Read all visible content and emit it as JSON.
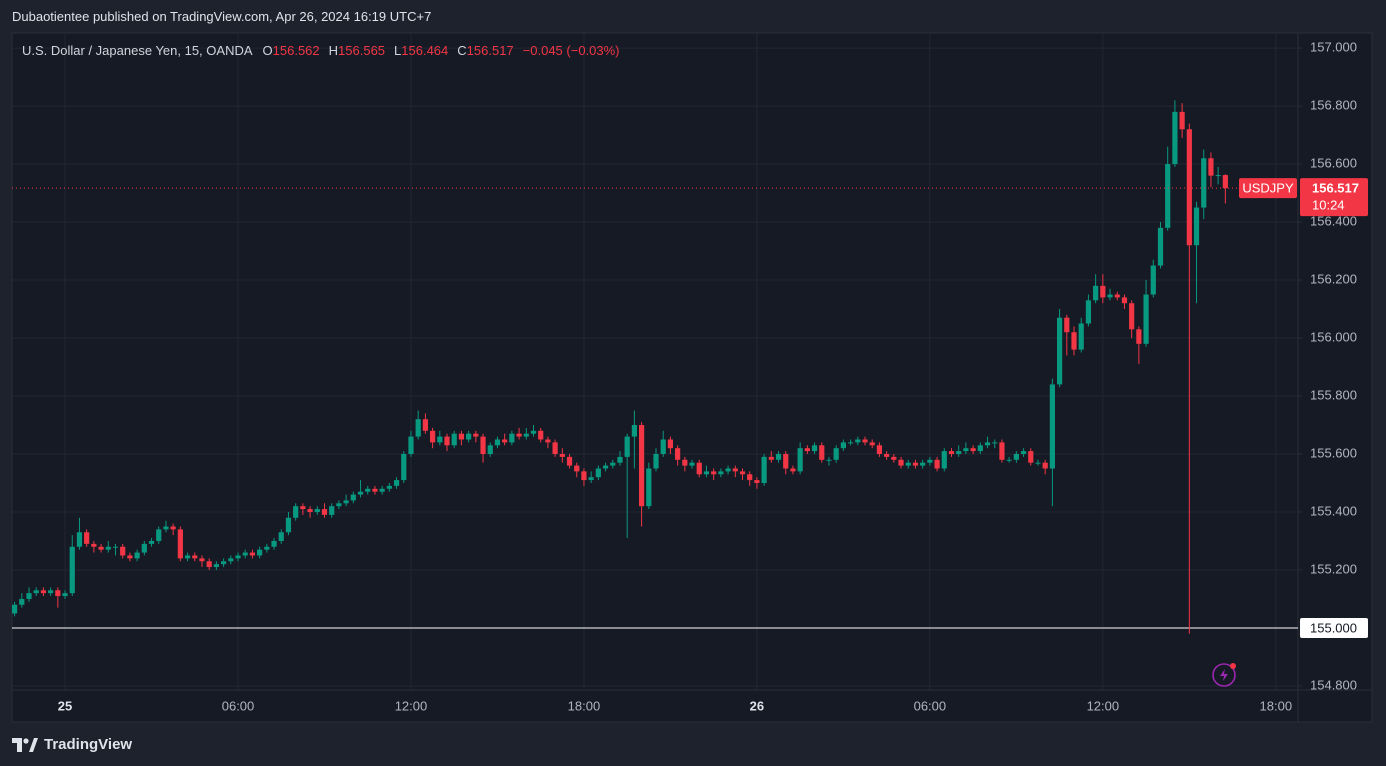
{
  "published": "Dubaotientee published on TradingView.com, Apr 26, 2024 16:19 UTC+7",
  "brand": "TradingView",
  "chart_data": {
    "type": "candlestick",
    "symbol_description": "U.S. Dollar / Japanese Yen, 15, OANDA",
    "ohlc_labels": [
      "O",
      "H",
      "L",
      "C"
    ],
    "change": "−0.045 (−0.03%)",
    "countdown": "10:24",
    "grid": true,
    "background": "#161a25",
    "xlim": [
      -1.84,
      42.77
    ],
    "ylim": [
      154.786,
      157.052
    ],
    "xticks": [
      {
        "value": 0,
        "label": "25"
      },
      {
        "value": 6,
        "label": "06:00"
      },
      {
        "value": 12,
        "label": "12:00"
      },
      {
        "value": 18,
        "label": "18:00"
      },
      {
        "value": 24,
        "label": "26"
      },
      {
        "value": 30,
        "label": "06:00"
      },
      {
        "value": 36,
        "label": "12:00"
      },
      {
        "value": 42,
        "label": "18:00"
      }
    ],
    "yticks": [
      {
        "value": 154.8,
        "label": "154.800"
      },
      {
        "value": 155,
        "label": "155.000"
      },
      {
        "value": 155.2,
        "label": "155.200"
      },
      {
        "value": 155.4,
        "label": "155.400"
      },
      {
        "value": 155.6,
        "label": "155.600"
      },
      {
        "value": 155.8,
        "label": "155.800"
      },
      {
        "value": 156,
        "label": "156.000"
      },
      {
        "value": 156.2,
        "label": "156.200"
      },
      {
        "value": 156.4,
        "label": "156.400"
      },
      {
        "value": 156.6,
        "label": "156.600"
      },
      {
        "value": 156.8,
        "label": "156.800"
      },
      {
        "value": 157,
        "label": "157.000"
      }
    ],
    "hline": {
      "value": 155,
      "label": "155.000",
      "color": "#ffffff"
    },
    "x": [
      -1.75,
      -1.5,
      -1.25,
      -1,
      -0.75,
      -0.5,
      -0.25,
      0,
      0.25,
      0.5,
      0.75,
      1,
      1.25,
      1.5,
      1.75,
      2,
      2.25,
      2.5,
      2.75,
      3,
      3.25,
      3.5,
      3.75,
      4,
      4.25,
      4.5,
      4.75,
      5,
      5.25,
      5.5,
      5.75,
      6,
      6.25,
      6.5,
      6.75,
      7,
      7.25,
      7.5,
      7.75,
      8,
      8.25,
      8.5,
      8.75,
      9,
      9.25,
      9.5,
      9.75,
      10,
      10.25,
      10.5,
      10.75,
      11,
      11.25,
      11.5,
      11.75,
      12,
      12.25,
      12.5,
      12.75,
      13,
      13.25,
      13.5,
      13.75,
      14,
      14.25,
      14.5,
      14.75,
      15,
      15.25,
      15.5,
      15.75,
      16,
      16.25,
      16.5,
      16.75,
      17,
      17.25,
      17.5,
      17.75,
      18,
      18.25,
      18.5,
      18.75,
      19,
      19.25,
      19.5,
      19.75,
      20,
      20.25,
      20.5,
      20.75,
      21,
      21.25,
      21.5,
      21.75,
      22,
      22.25,
      22.5,
      22.75,
      23,
      23.25,
      23.5,
      23.75,
      24,
      24.25,
      24.5,
      24.75,
      25,
      25.25,
      25.5,
      25.75,
      26,
      26.25,
      26.5,
      26.75,
      27,
      27.25,
      27.5,
      27.75,
      28,
      28.25,
      28.5,
      28.75,
      29,
      29.25,
      29.5,
      29.75,
      30,
      30.25,
      30.5,
      30.75,
      31,
      31.25,
      31.5,
      31.75,
      32,
      32.25,
      32.5,
      32.75,
      33,
      33.25,
      33.5,
      33.75,
      34,
      34.25,
      34.5,
      34.75,
      35,
      35.25,
      35.5,
      35.75,
      36,
      36.25,
      36.5,
      36.75,
      37,
      37.25,
      37.5,
      37.75,
      38,
      38.25,
      38.5,
      38.75,
      39,
      39.25,
      39.5,
      39.75,
      40,
      40.25
    ],
    "series": [
      {
        "name": "USDJPY",
        "up_color": "#089981",
        "down_color": "#f23645",
        "open": [
          155.05,
          155.08,
          155.1,
          155.12,
          155.13,
          155.12,
          155.13,
          155.11,
          155.12,
          155.28,
          155.33,
          155.29,
          155.28,
          155.27,
          155.28,
          155.28,
          155.25,
          155.24,
          155.26,
          155.29,
          155.3,
          155.34,
          155.35,
          155.34,
          155.24,
          155.25,
          155.24,
          155.23,
          155.21,
          155.22,
          155.23,
          155.24,
          155.25,
          155.26,
          155.25,
          155.27,
          155.28,
          155.3,
          155.33,
          155.38,
          155.42,
          155.41,
          155.4,
          155.41,
          155.39,
          155.42,
          155.43,
          155.44,
          155.46,
          155.47,
          155.48,
          155.47,
          155.48,
          155.49,
          155.51,
          155.6,
          155.66,
          155.72,
          155.68,
          155.64,
          155.66,
          155.63,
          155.67,
          155.65,
          155.67,
          155.66,
          155.6,
          155.63,
          155.65,
          155.64,
          155.67,
          155.66,
          155.67,
          155.68,
          155.65,
          155.64,
          155.6,
          155.59,
          155.56,
          155.54,
          155.51,
          155.52,
          155.55,
          155.56,
          155.57,
          155.59,
          155.66,
          155.7,
          155.42,
          155.55,
          155.6,
          155.65,
          155.62,
          155.58,
          155.56,
          155.57,
          155.53,
          155.54,
          155.53,
          155.54,
          155.55,
          155.54,
          155.53,
          155.51,
          155.5,
          155.59,
          155.58,
          155.6,
          155.55,
          155.54,
          155.62,
          155.61,
          155.63,
          155.58,
          155.58,
          155.62,
          155.64,
          155.64,
          155.65,
          155.64,
          155.63,
          155.6,
          155.59,
          155.58,
          155.56,
          155.57,
          155.56,
          155.57,
          155.58,
          155.55,
          155.61,
          155.6,
          155.61,
          155.62,
          155.61,
          155.63,
          155.64,
          155.64,
          155.58,
          155.58,
          155.6,
          155.61,
          155.57,
          155.57,
          155.55,
          155.84,
          156.07,
          156.02,
          155.96,
          156.05,
          156.13,
          156.18,
          156.14,
          156.15,
          156.14,
          156.12,
          156.03,
          155.98,
          156.15,
          156.25,
          156.38,
          156.6,
          156.78,
          156.72,
          156.32,
          156.45,
          156.62,
          156.56,
          156.562
        ],
        "high": [
          155.09,
          155.12,
          155.14,
          155.14,
          155.14,
          155.14,
          155.14,
          155.13,
          155.32,
          155.38,
          155.34,
          155.3,
          155.29,
          155.3,
          155.29,
          155.29,
          155.26,
          155.27,
          155.3,
          155.31,
          155.35,
          155.37,
          155.36,
          155.35,
          155.26,
          155.26,
          155.25,
          155.24,
          155.23,
          155.24,
          155.25,
          155.26,
          155.27,
          155.27,
          155.28,
          155.29,
          155.31,
          155.34,
          155.4,
          155.43,
          155.43,
          155.42,
          155.42,
          155.43,
          155.43,
          155.44,
          155.46,
          155.47,
          155.51,
          155.49,
          155.49,
          155.49,
          155.5,
          155.52,
          155.61,
          155.68,
          155.75,
          155.74,
          155.69,
          155.68,
          155.67,
          155.68,
          155.68,
          155.68,
          155.68,
          155.67,
          155.64,
          155.66,
          155.67,
          155.68,
          155.69,
          155.69,
          155.7,
          155.69,
          155.66,
          155.65,
          155.62,
          155.6,
          155.57,
          155.55,
          155.54,
          155.56,
          155.57,
          155.58,
          155.61,
          155.67,
          155.75,
          155.71,
          155.57,
          155.62,
          155.68,
          155.66,
          155.63,
          155.59,
          155.58,
          155.58,
          155.56,
          155.55,
          155.55,
          155.56,
          155.56,
          155.55,
          155.54,
          155.52,
          155.6,
          155.61,
          155.61,
          155.61,
          155.56,
          155.64,
          155.63,
          155.64,
          155.64,
          155.59,
          155.63,
          155.65,
          155.65,
          155.66,
          155.66,
          155.65,
          155.64,
          155.61,
          155.6,
          155.59,
          155.58,
          155.58,
          155.58,
          155.59,
          155.59,
          155.62,
          155.62,
          155.63,
          155.64,
          155.63,
          155.64,
          155.66,
          155.65,
          155.65,
          155.59,
          155.61,
          155.62,
          155.62,
          155.58,
          155.58,
          155.86,
          156.1,
          156.08,
          156.04,
          156.07,
          156.15,
          156.22,
          156.22,
          156.17,
          156.16,
          156.15,
          156.13,
          156.04,
          156.2,
          156.27,
          156.4,
          156.66,
          156.82,
          156.81,
          156.74,
          156.47,
          156.65,
          156.64,
          156.59,
          156.565
        ],
        "low": [
          155.04,
          155.07,
          155.09,
          155.11,
          155.11,
          155.11,
          155.07,
          155.1,
          155.11,
          155.27,
          155.28,
          155.26,
          155.26,
          155.26,
          155.25,
          155.24,
          155.23,
          155.23,
          155.25,
          155.28,
          155.29,
          155.33,
          155.32,
          155.23,
          155.23,
          155.23,
          155.21,
          155.2,
          155.2,
          155.21,
          155.22,
          155.23,
          155.24,
          155.24,
          155.24,
          155.26,
          155.27,
          155.29,
          155.32,
          155.37,
          155.39,
          155.38,
          155.39,
          155.38,
          155.38,
          155.41,
          155.42,
          155.43,
          155.45,
          155.46,
          155.46,
          155.46,
          155.47,
          155.48,
          155.5,
          155.59,
          155.65,
          155.67,
          155.62,
          155.63,
          155.61,
          155.62,
          155.63,
          155.64,
          155.64,
          155.57,
          155.59,
          155.62,
          155.63,
          155.63,
          155.65,
          155.65,
          155.66,
          155.64,
          155.62,
          155.59,
          155.57,
          155.55,
          155.52,
          155.49,
          155.5,
          155.51,
          155.54,
          155.55,
          155.56,
          155.31,
          155.55,
          155.35,
          155.41,
          155.54,
          155.59,
          155.6,
          155.56,
          155.54,
          155.55,
          155.52,
          155.52,
          155.51,
          155.52,
          155.53,
          155.52,
          155.51,
          155.49,
          155.48,
          155.49,
          155.57,
          155.57,
          155.53,
          155.53,
          155.53,
          155.6,
          155.6,
          155.57,
          155.56,
          155.57,
          155.61,
          155.63,
          155.63,
          155.63,
          155.62,
          155.59,
          155.58,
          155.57,
          155.55,
          155.55,
          155.55,
          155.55,
          155.56,
          155.54,
          155.54,
          155.59,
          155.59,
          155.6,
          155.6,
          155.6,
          155.62,
          155.62,
          155.57,
          155.57,
          155.57,
          155.59,
          155.56,
          155.56,
          155.53,
          155.42,
          155.83,
          155.94,
          155.94,
          155.95,
          156.04,
          156.12,
          156.12,
          156.13,
          156.13,
          156.1,
          156.0,
          155.91,
          155.97,
          156.14,
          156.24,
          156.37,
          156.59,
          156.69,
          154.98,
          156.12,
          156.41,
          156.52,
          156.53,
          156.464
        ],
        "close": [
          155.08,
          155.1,
          155.12,
          155.13,
          155.12,
          155.13,
          155.11,
          155.12,
          155.28,
          155.33,
          155.29,
          155.28,
          155.27,
          155.28,
          155.28,
          155.25,
          155.24,
          155.26,
          155.29,
          155.3,
          155.34,
          155.35,
          155.34,
          155.24,
          155.25,
          155.24,
          155.23,
          155.21,
          155.22,
          155.23,
          155.24,
          155.25,
          155.26,
          155.25,
          155.27,
          155.28,
          155.3,
          155.33,
          155.38,
          155.42,
          155.41,
          155.4,
          155.41,
          155.39,
          155.42,
          155.43,
          155.44,
          155.46,
          155.47,
          155.48,
          155.47,
          155.48,
          155.49,
          155.51,
          155.6,
          155.66,
          155.72,
          155.68,
          155.64,
          155.66,
          155.63,
          155.67,
          155.65,
          155.67,
          155.66,
          155.6,
          155.63,
          155.65,
          155.64,
          155.67,
          155.66,
          155.67,
          155.68,
          155.65,
          155.64,
          155.6,
          155.59,
          155.56,
          155.54,
          155.51,
          155.52,
          155.55,
          155.56,
          155.57,
          155.59,
          155.66,
          155.7,
          155.42,
          155.55,
          155.6,
          155.65,
          155.62,
          155.58,
          155.56,
          155.57,
          155.53,
          155.54,
          155.53,
          155.54,
          155.55,
          155.54,
          155.53,
          155.51,
          155.5,
          155.59,
          155.58,
          155.6,
          155.55,
          155.54,
          155.62,
          155.61,
          155.63,
          155.58,
          155.58,
          155.62,
          155.64,
          155.64,
          155.65,
          155.64,
          155.63,
          155.6,
          155.59,
          155.58,
          155.56,
          155.57,
          155.56,
          155.57,
          155.58,
          155.55,
          155.61,
          155.6,
          155.61,
          155.62,
          155.61,
          155.63,
          155.64,
          155.64,
          155.58,
          155.58,
          155.6,
          155.61,
          155.57,
          155.57,
          155.55,
          155.84,
          156.07,
          156.02,
          155.96,
          156.05,
          156.13,
          156.18,
          156.14,
          156.15,
          156.14,
          156.12,
          156.03,
          155.98,
          156.15,
          156.25,
          156.38,
          156.6,
          156.78,
          156.72,
          156.32,
          156.45,
          156.62,
          156.56,
          156.562,
          156.517
        ]
      }
    ]
  }
}
